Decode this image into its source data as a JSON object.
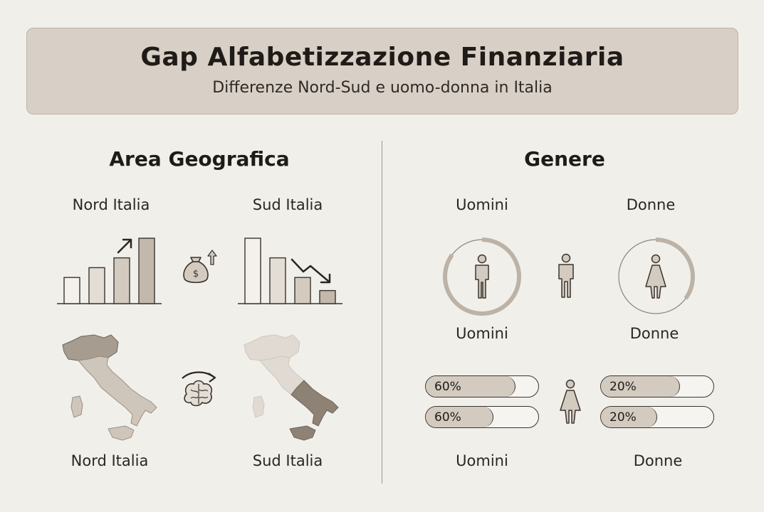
{
  "header": {
    "title": "Gap Alfabetizzazione Finanziaria",
    "subtitle": "Differenze Nord-Sud e uomo-donna in Italia"
  },
  "geo": {
    "title": "Area Geografica",
    "north_top_label": "Nord Italia",
    "south_top_label": "Sud Italia",
    "north_bottom_label": "Nord Italia",
    "south_bottom_label": "Sud Italia",
    "north_bar_levels": [
      0.4,
      0.55,
      0.7,
      1.0
    ],
    "south_bar_levels": [
      1.0,
      0.7,
      0.4,
      0.2
    ],
    "currency_symbol": "$",
    "icons": [
      "trend-up-arrow-icon",
      "money-bag-icon",
      "trend-down-arrow-icon",
      "brain-icon",
      "italy-map-icon"
    ]
  },
  "gender": {
    "title": "Genere",
    "men_top_label": "Uomini",
    "women_top_label": "Donne",
    "men_ring_label": "Uomini",
    "women_ring_label": "Donne",
    "men_ring_fraction": 0.85,
    "women_ring_fraction": 0.35,
    "men_bottom_label": "Uomini",
    "women_bottom_label": "Donne",
    "bars": {
      "men": [
        {
          "label": "60%",
          "value": 0.8
        },
        {
          "label": "60%",
          "value": 0.6
        }
      ],
      "women": [
        {
          "label": "20%",
          "value": 0.7
        },
        {
          "label": "20%",
          "value": 0.5
        }
      ]
    },
    "icons": [
      "man-icon",
      "woman-icon"
    ]
  },
  "colors": {
    "background": "#f1efea",
    "header_fill": "#d8d0c6",
    "accent": "#a69c90",
    "dark_region": "#8e8275",
    "stroke": "#3a3430"
  }
}
